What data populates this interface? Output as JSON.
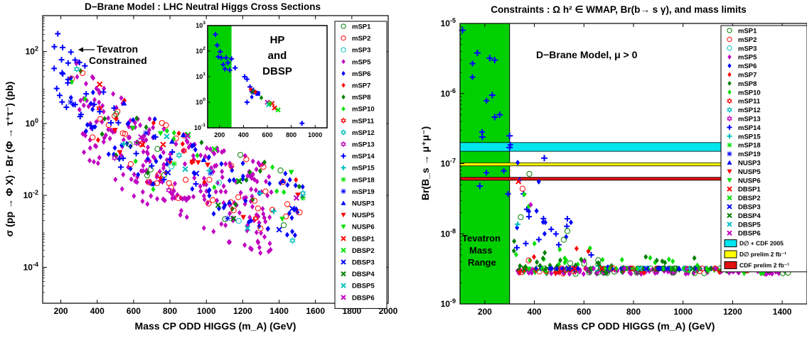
{
  "chart_data": [
    {
      "type": "scatter",
      "title": "D−Brane Model : LHC Neutral Higgs Cross Sections",
      "xlabel": "Mass CP ODD HIGGS (m_A)  (GeV)",
      "ylabel": "σ (pp → Φ X) · Br (Φ → τ⁺τ⁻) (pb)",
      "xlim": [
        100,
        2000
      ],
      "ylim": [
        1e-05,
        1000
      ],
      "yscale": "log",
      "x_ticks": [
        "200",
        "400",
        "600",
        "800",
        "1000",
        "1200",
        "1400",
        "1600",
        "1800",
        "2000"
      ],
      "y_ticks": [
        "10^2",
        "10^0",
        "10^-2",
        "10^-4"
      ],
      "legend_position": "right",
      "annotations": [
        "Tevatron",
        "Constrained"
      ],
      "inset": {
        "title_lines": [
          "HP",
          "and",
          "DBSP"
        ],
        "xlim": [
          100,
          1100
        ],
        "ylim": [
          0.1,
          1000
        ],
        "x_ticks": [
          "200",
          "400",
          "600",
          "800",
          "1000"
        ],
        "y_ticks": [
          "10^3",
          "10^2",
          "10^1",
          "10^0",
          "10^-1"
        ],
        "excluded_band": [
          100,
          300
        ]
      }
    },
    {
      "type": "scatter",
      "title": "Constraints : Ω h² ∈ WMAP, Br(b→ s γ), and mass limits",
      "xlabel": "Mass CP ODD HIGGS (m_A)  (GeV)",
      "ylabel": "Br(B_s → μ⁺μ⁻)",
      "xlim": [
        100,
        1500
      ],
      "ylim": [
        1e-09,
        1e-05
      ],
      "yscale": "log",
      "x_ticks": [
        "200",
        "400",
        "600",
        "800",
        "1000",
        "1200",
        "1400"
      ],
      "y_ticks": [
        "10^-5",
        "10^-6",
        "10^-7",
        "10^-8",
        "10^-9"
      ],
      "legend_position": "right",
      "annotations": [
        "D−Brane Model, μ > 0",
        "Tevatron",
        "Mass",
        "Range"
      ],
      "excluded_band": [
        100,
        300
      ],
      "limit_bands": [
        {
          "label": "D∅ + CDF 2005",
          "color": "#00e5ee",
          "range": [
            1.5e-07,
            2e-07
          ]
        },
        {
          "label": "D∅ prelim 2 fb⁻¹",
          "color": "#ffff00",
          "range": [
            9.3e-08,
            1.03e-07
          ]
        },
        {
          "label": "CDF prelim 2 fb⁻¹",
          "color": "#e01010",
          "range": [
            5.8e-08,
            6.4e-08
          ]
        }
      ]
    }
  ],
  "legend": [
    {
      "name": "mSP1",
      "color": "#008000",
      "marker": "circle-open"
    },
    {
      "name": "mSP2",
      "color": "#ff0000",
      "marker": "circle-open"
    },
    {
      "name": "mSP3",
      "color": "#00bfbf",
      "marker": "circle-open"
    },
    {
      "name": "mSP5",
      "color": "#c000c0",
      "marker": "diamond"
    },
    {
      "name": "mSP6",
      "color": "#0000ff",
      "marker": "diamond"
    },
    {
      "name": "mSP7",
      "color": "#ff0000",
      "marker": "diamond"
    },
    {
      "name": "mSP8",
      "color": "#008000",
      "marker": "diamond"
    },
    {
      "name": "mSP10",
      "color": "#00e000",
      "marker": "diamond"
    },
    {
      "name": "mSP11",
      "color": "#ff0000",
      "marker": "hexagram"
    },
    {
      "name": "mSP12",
      "color": "#00bfbf",
      "marker": "hexagram"
    },
    {
      "name": "mSP13",
      "color": "#c000c0",
      "marker": "hexagram"
    },
    {
      "name": "mSP14",
      "color": "#0000ff",
      "marker": "plus"
    },
    {
      "name": "mSP15",
      "color": "#00bfbf",
      "marker": "plus"
    },
    {
      "name": "mSP18",
      "color": "#00e000",
      "marker": "asterisk"
    },
    {
      "name": "mSP19",
      "color": "#0000ff",
      "marker": "asterisk"
    },
    {
      "name": "NUSP3",
      "color": "#0000ff",
      "marker": "triangle-up"
    },
    {
      "name": "NUSP5",
      "color": "#ff0000",
      "marker": "triangle-down"
    },
    {
      "name": "NUSP6",
      "color": "#00e000",
      "marker": "triangle-down"
    },
    {
      "name": "DBSP1",
      "color": "#ff0000",
      "marker": "x"
    },
    {
      "name": "DBSP2",
      "color": "#00e000",
      "marker": "x"
    },
    {
      "name": "DBSP3",
      "color": "#0000ff",
      "marker": "x"
    },
    {
      "name": "DBSP4",
      "color": "#008000",
      "marker": "x"
    },
    {
      "name": "DBSP5",
      "color": "#00bfbf",
      "marker": "x"
    },
    {
      "name": "DBSP6",
      "color": "#c000c0",
      "marker": "x"
    }
  ]
}
